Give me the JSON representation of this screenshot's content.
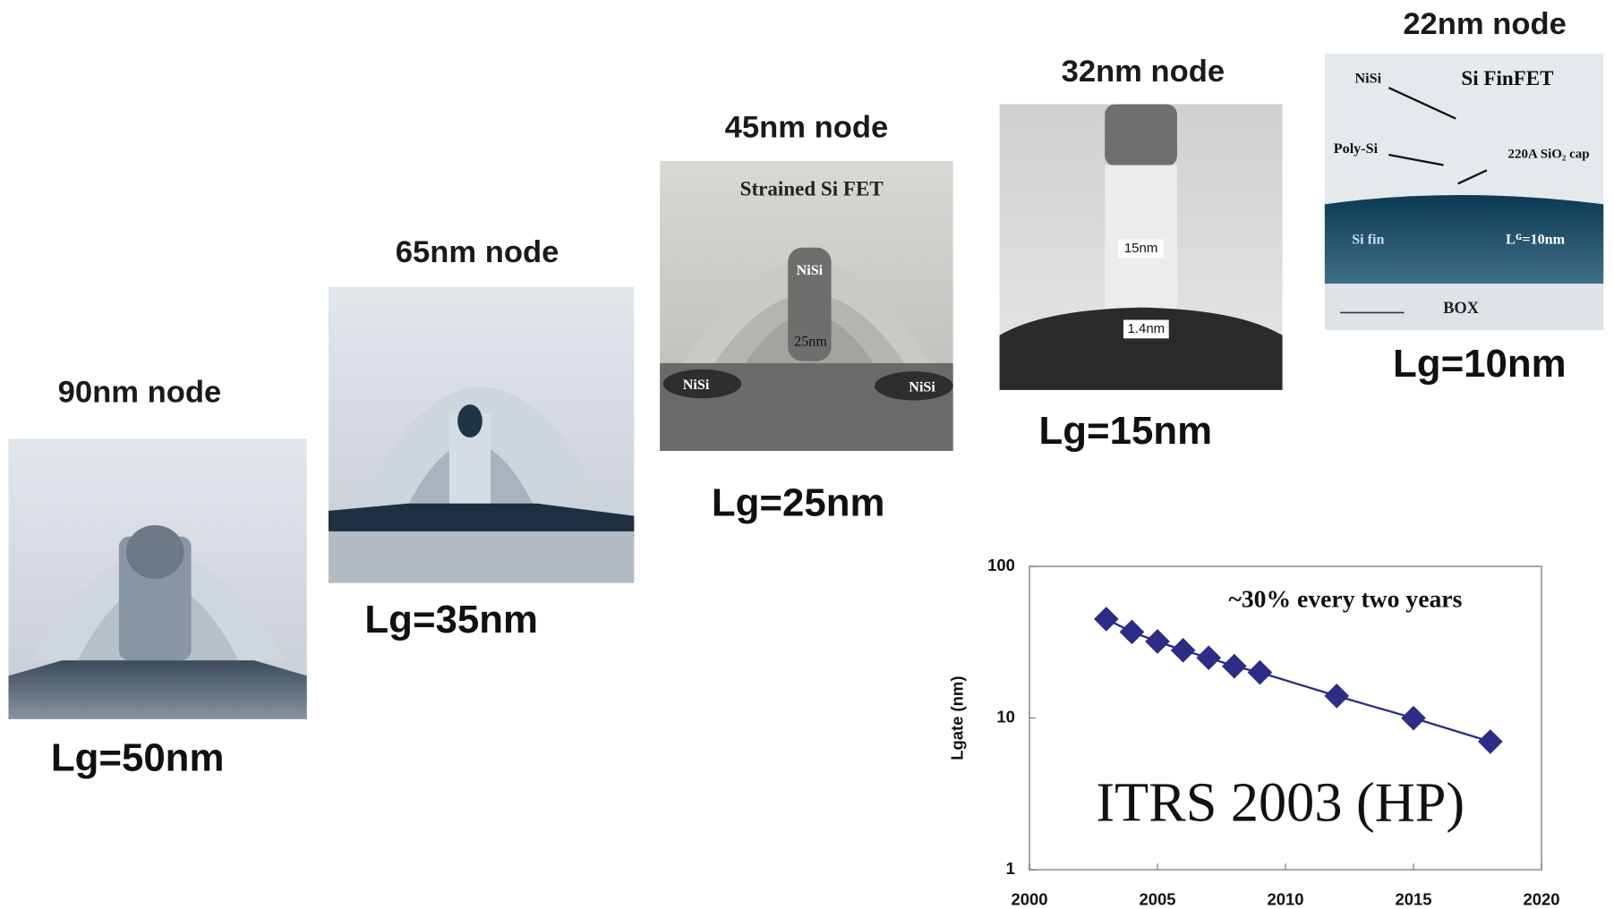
{
  "nodes": [
    {
      "title": "90nm node",
      "gate_length": "Lg=50nm",
      "image_labels": []
    },
    {
      "title": "65nm node",
      "gate_length": "Lg=35nm",
      "image_labels": []
    },
    {
      "title": "45nm node",
      "gate_length": "Lg=25nm",
      "image_labels": [
        "Strained Si FET",
        "NiSi",
        "25nm",
        "NiSi",
        "NiSi"
      ]
    },
    {
      "title": "32nm node",
      "gate_length": "Lg=15nm",
      "image_labels": [
        "15nm",
        "1.4nm"
      ]
    },
    {
      "title": "22nm node",
      "gate_length": "Lg=10nm",
      "image_labels": [
        "NiSi",
        "Si FinFET",
        "Poly-Si",
        "220A SiO₂ cap",
        "Si fin",
        "Lᴳ=10nm",
        "BOX"
      ]
    }
  ],
  "chart_data": {
    "type": "line",
    "ylabel": "Lgate (nm)",
    "annotations": [
      "~30% every two years",
      "ITRS 2003 (HP)"
    ],
    "x": [
      2003,
      2004,
      2005,
      2006,
      2007,
      2008,
      2009,
      2012,
      2015,
      2018
    ],
    "series": [
      {
        "color": "#2b2d86",
        "values": [
          45,
          37,
          32,
          28,
          25,
          22,
          20,
          14,
          10,
          7
        ]
      }
    ],
    "xlim": [
      2000,
      2020
    ],
    "xticks": [
      2000,
      2005,
      2010,
      2015,
      2020
    ],
    "ylim": [
      1,
      100
    ],
    "yticks": [
      1,
      10,
      100
    ],
    "log_y": true,
    "grid": false
  }
}
